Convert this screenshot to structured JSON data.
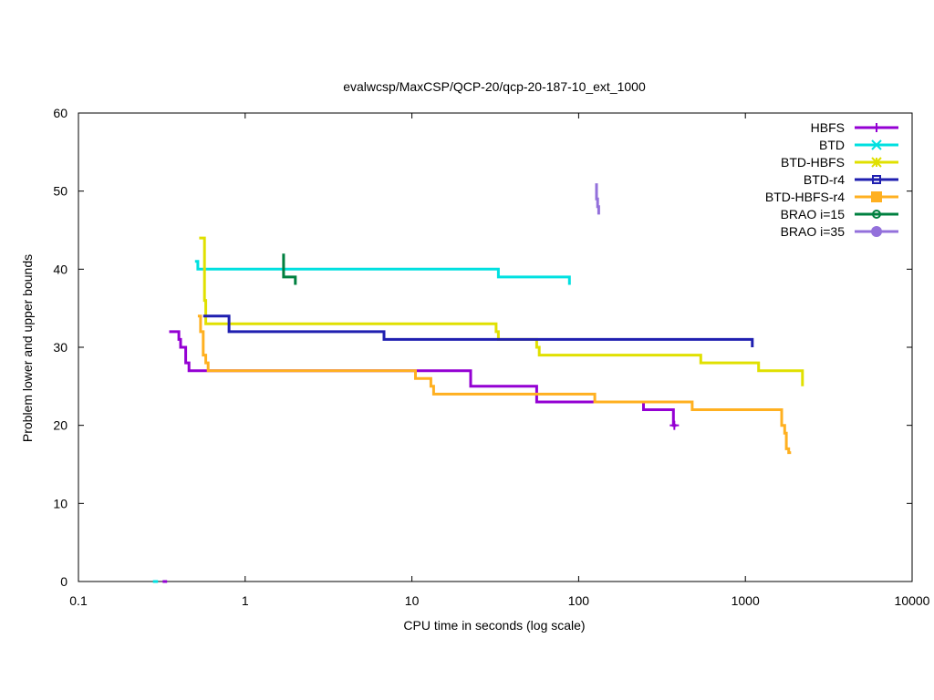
{
  "chart_data": {
    "type": "line",
    "title": "evalwcsp/MaxCSP/QCP-20/qcp-20-187-10_ext_1000",
    "xlabel": "CPU time in seconds (log scale)",
    "ylabel": "Problem lower and upper bounds",
    "xscale": "log",
    "xlim": [
      0.1,
      10000
    ],
    "ylim": [
      0,
      60
    ],
    "xticks": [
      {
        "value": 0.1,
        "label": "0.1"
      },
      {
        "value": 1,
        "label": "1"
      },
      {
        "value": 10,
        "label": "10"
      },
      {
        "value": 100,
        "label": "100"
      },
      {
        "value": 1000,
        "label": "1000"
      },
      {
        "value": 10000,
        "label": "10000"
      }
    ],
    "yticks": [
      {
        "value": 0,
        "label": "0"
      },
      {
        "value": 10,
        "label": "10"
      },
      {
        "value": 20,
        "label": "20"
      },
      {
        "value": 30,
        "label": "30"
      },
      {
        "value": 40,
        "label": "40"
      },
      {
        "value": 50,
        "label": "50"
      },
      {
        "value": 60,
        "label": "60"
      }
    ],
    "grid": false,
    "legend_position": "top-right",
    "series": [
      {
        "name": "HBFS",
        "color": "#9400d3",
        "marker": "plus",
        "upper": [
          [
            0.35,
            32
          ],
          [
            0.4,
            32
          ],
          [
            0.4,
            31
          ],
          [
            0.41,
            31
          ],
          [
            0.41,
            30
          ],
          [
            0.44,
            30
          ],
          [
            0.44,
            28
          ],
          [
            0.46,
            28
          ],
          [
            0.46,
            27
          ],
          [
            10.7,
            27
          ],
          [
            10.7,
            27
          ],
          [
            22.5,
            27
          ],
          [
            22.5,
            25
          ],
          [
            56,
            25
          ],
          [
            56,
            23
          ],
          [
            73,
            23
          ],
          [
            73,
            23
          ],
          [
            125,
            23
          ],
          [
            245,
            23
          ],
          [
            245,
            22
          ],
          [
            370,
            22
          ],
          [
            370,
            20
          ],
          [
            385,
            20
          ]
        ],
        "lower": [
          [
            0.32,
            0
          ],
          [
            0.34,
            0
          ]
        ],
        "end_marks": [
          [
            375,
            20
          ]
        ]
      },
      {
        "name": "BTD",
        "color": "#00e0e0",
        "marker": "x",
        "upper": [
          [
            0.5,
            41
          ],
          [
            0.52,
            41
          ],
          [
            0.52,
            40
          ],
          [
            33,
            40
          ],
          [
            33,
            39
          ],
          [
            88,
            39
          ],
          [
            88,
            38
          ]
        ],
        "lower": [
          [
            0.28,
            0
          ],
          [
            0.3,
            0
          ]
        ],
        "end_marks": []
      },
      {
        "name": "BTD-HBFS",
        "color": "#e0e000",
        "marker": "star",
        "upper": [
          [
            0.53,
            44
          ],
          [
            0.57,
            44
          ],
          [
            0.57,
            36
          ],
          [
            0.58,
            36
          ],
          [
            0.58,
            33
          ],
          [
            32,
            33
          ],
          [
            32,
            32
          ],
          [
            33,
            32
          ],
          [
            33,
            31
          ],
          [
            56,
            31
          ],
          [
            56,
            30
          ],
          [
            58,
            30
          ],
          [
            58,
            29
          ],
          [
            540,
            29
          ],
          [
            540,
            28
          ],
          [
            1200,
            28
          ],
          [
            1200,
            27
          ],
          [
            2200,
            27
          ],
          [
            2200,
            25
          ]
        ],
        "lower": [],
        "end_marks": []
      },
      {
        "name": "BTD-r4",
        "color": "#1f1fb0",
        "marker": "square",
        "upper": [
          [
            0.56,
            34
          ],
          [
            0.8,
            34
          ],
          [
            0.8,
            32
          ],
          [
            6.8,
            32
          ],
          [
            6.8,
            31
          ],
          [
            1100,
            31
          ],
          [
            1100,
            30
          ]
        ],
        "lower": [],
        "end_marks": []
      },
      {
        "name": "BTD-HBFS-r4",
        "color": "#ffb020",
        "marker": "filled-square",
        "upper": [
          [
            0.52,
            34
          ],
          [
            0.54,
            34
          ],
          [
            0.54,
            32
          ],
          [
            0.56,
            32
          ],
          [
            0.56,
            29
          ],
          [
            0.58,
            29
          ],
          [
            0.58,
            28
          ],
          [
            0.6,
            28
          ],
          [
            0.6,
            27
          ],
          [
            10.5,
            27
          ],
          [
            10.5,
            26
          ],
          [
            13,
            26
          ],
          [
            13,
            25
          ],
          [
            13.5,
            25
          ],
          [
            13.5,
            24
          ],
          [
            125,
            24
          ],
          [
            125,
            23
          ],
          [
            480,
            23
          ],
          [
            480,
            22
          ],
          [
            1650,
            22
          ],
          [
            1650,
            20
          ],
          [
            1720,
            20
          ],
          [
            1720,
            19
          ],
          [
            1760,
            19
          ],
          [
            1760,
            17
          ],
          [
            1820,
            17
          ],
          [
            1820,
            16.5
          ],
          [
            1880,
            16.5
          ]
        ],
        "lower": [],
        "end_marks": []
      },
      {
        "name": "BRAO i=15",
        "color": "#008040",
        "marker": "circle",
        "upper": [
          [
            1.7,
            42
          ],
          [
            1.7,
            39
          ],
          [
            2.0,
            39
          ],
          [
            2.0,
            38
          ]
        ],
        "lower": [],
        "end_marks": []
      },
      {
        "name": "BRAO i=35",
        "color": "#9370db",
        "marker": "filled-circle",
        "upper": [
          [
            128,
            51
          ],
          [
            128,
            49
          ],
          [
            130,
            49
          ],
          [
            130,
            48
          ],
          [
            132,
            48
          ],
          [
            132,
            47
          ]
        ],
        "lower": [],
        "end_marks": []
      }
    ]
  }
}
